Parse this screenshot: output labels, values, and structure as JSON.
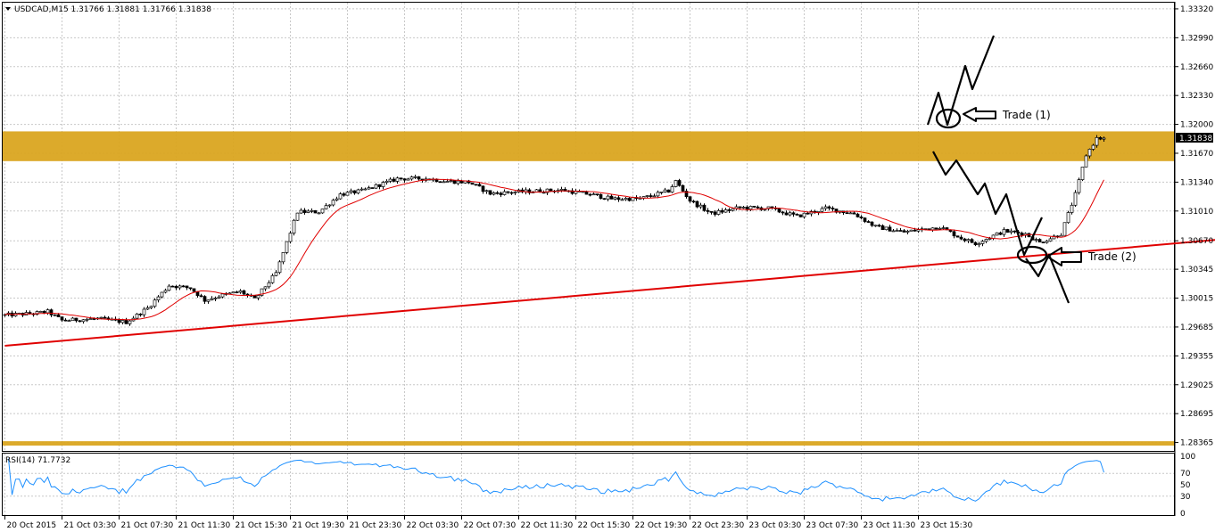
{
  "header": {
    "arrow_icon": "triangle-down-icon",
    "text": "USDCAD,M15  1.31766 1.31881 1.31766 1.31838"
  },
  "rsi_header": "RSI(14) 71.7732",
  "colors": {
    "background": "#ffffff",
    "grid": "#c8c8c8",
    "bull": "#ffffff",
    "bear": "#000000",
    "candle_outline": "#000000",
    "moving_average": "#e00000",
    "trendline": "#e00000",
    "zone": "#daa520",
    "rsi": "#1e90ff",
    "price_tag_bg": "#000000",
    "price_tag_text": "#ffffff"
  },
  "annotations": {
    "trade1": "Trade  (1)",
    "trade2": "Trade (2)"
  },
  "chart_data": {
    "type": "candlestick",
    "symbol": "USDCAD",
    "timeframe": "M15",
    "ohlc_header": {
      "open": 1.31766,
      "high": 1.31881,
      "low": 1.31766,
      "close": 1.31838
    },
    "current_price_label": "1.31838",
    "y_ticks": [
      "1.33320",
      "1.32990",
      "1.32660",
      "1.32330",
      "1.32000",
      "1.31670",
      "1.31340",
      "1.31010",
      "1.30670",
      "1.30345",
      "1.30015",
      "1.29685",
      "1.29355",
      "1.29025",
      "1.28695",
      "1.28365"
    ],
    "ylim": [
      1.2832,
      1.3336
    ],
    "x_ticks": [
      "20 Oct 2015",
      "21 Oct 03:30",
      "21 Oct 07:30",
      "21 Oct 11:30",
      "21 Oct 15:30",
      "21 Oct 19:30",
      "21 Oct 23:30",
      "22 Oct 03:30",
      "22 Oct 07:30",
      "22 Oct 11:30",
      "22 Oct 15:30",
      "22 Oct 19:30",
      "22 Oct 23:30",
      "23 Oct 03:30",
      "23 Oct 07:30",
      "23 Oct 11:30",
      "23 Oct 15:30"
    ],
    "bars_per_tick": 16,
    "anchors": [
      [
        0,
        1.2982
      ],
      [
        8,
        1.2984
      ],
      [
        12,
        1.2986
      ],
      [
        16,
        1.2976
      ],
      [
        26,
        1.2978
      ],
      [
        34,
        1.2974
      ],
      [
        40,
        1.299
      ],
      [
        46,
        1.3016
      ],
      [
        52,
        1.3013
      ],
      [
        56,
        1.2999
      ],
      [
        60,
        1.3004
      ],
      [
        66,
        1.3009
      ],
      [
        70,
        1.3
      ],
      [
        76,
        1.303
      ],
      [
        82,
        1.31
      ],
      [
        88,
        1.31
      ],
      [
        94,
        1.312
      ],
      [
        100,
        1.3124
      ],
      [
        110,
        1.3138
      ],
      [
        118,
        1.3138
      ],
      [
        124,
        1.3135
      ],
      [
        130,
        1.3134
      ],
      [
        136,
        1.3121
      ],
      [
        144,
        1.3123
      ],
      [
        150,
        1.3124
      ],
      [
        156,
        1.3125
      ],
      [
        164,
        1.312
      ],
      [
        170,
        1.3115
      ],
      [
        178,
        1.3115
      ],
      [
        186,
        1.3124
      ],
      [
        188,
        1.3135
      ],
      [
        192,
        1.3113
      ],
      [
        198,
        1.3098
      ],
      [
        206,
        1.3105
      ],
      [
        214,
        1.3104
      ],
      [
        222,
        1.3095
      ],
      [
        230,
        1.3104
      ],
      [
        238,
        1.3098
      ],
      [
        244,
        1.3083
      ],
      [
        252,
        1.3077
      ],
      [
        262,
        1.3083
      ],
      [
        268,
        1.307
      ],
      [
        272,
        1.3064
      ],
      [
        280,
        1.3078
      ],
      [
        286,
        1.3075
      ],
      [
        290,
        1.3065
      ],
      [
        296,
        1.3075
      ],
      [
        300,
        1.312
      ],
      [
        303,
        1.3165
      ],
      [
        306,
        1.3184
      ],
      [
        308,
        1.31838
      ]
    ],
    "rsi": {
      "period": 14,
      "value": 71.7732,
      "levels": [
        30,
        70
      ],
      "ylim": [
        0,
        100
      ],
      "y_ticks": [
        "100",
        "70",
        "50",
        "30",
        "0"
      ]
    },
    "zones": [
      {
        "from": 1.3158,
        "to": 1.3192
      },
      {
        "from": 1.2833,
        "to": 1.2838
      }
    ],
    "trendline": {
      "from_bar": 0,
      "from_price": 1.2947,
      "to_bar": 342,
      "to_price": 1.3069
    }
  }
}
